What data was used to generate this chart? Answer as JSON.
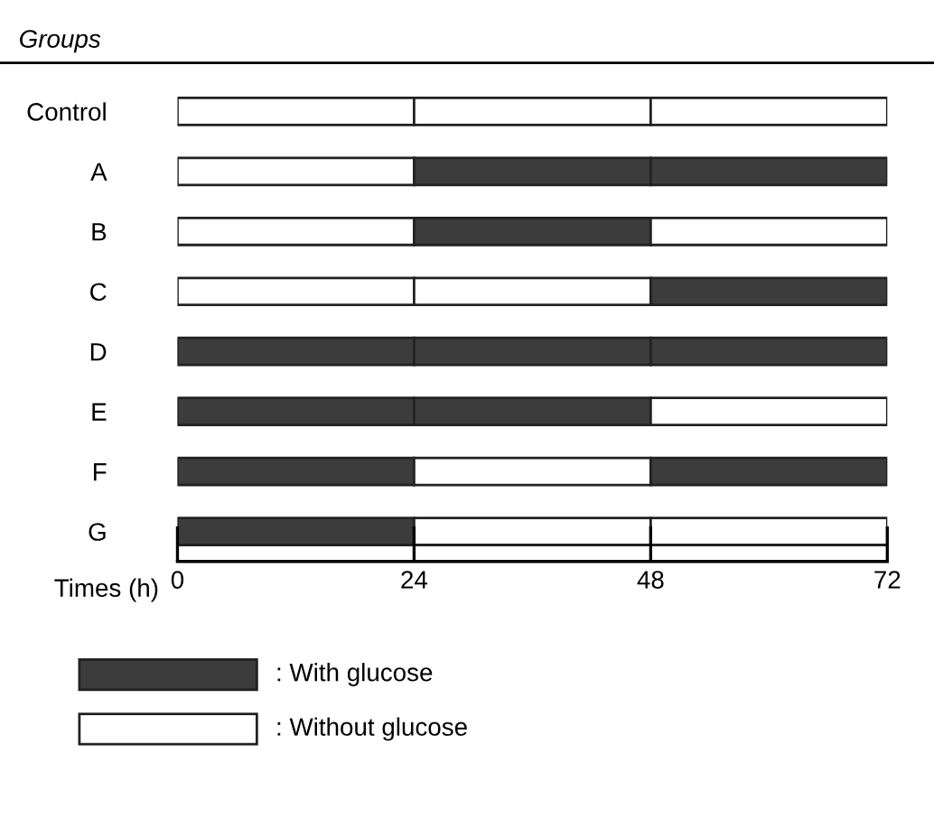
{
  "chart_data": {
    "type": "bar",
    "orientation": "horizontal",
    "stacked": true,
    "title": "Groups",
    "xlabel": "Times (h)",
    "categories": [
      "Control",
      "A",
      "B",
      "C",
      "D",
      "E",
      "F",
      "G"
    ],
    "series": [
      {
        "values": [
          24,
          24,
          24,
          24,
          24,
          24,
          24,
          24
        ],
        "colors": [
          "#ffffff",
          "#ffffff",
          "#ffffff",
          "#ffffff",
          "#3c3c3c",
          "#3c3c3c",
          "#3c3c3c",
          "#3c3c3c"
        ]
      },
      {
        "values": [
          24,
          24,
          24,
          24,
          24,
          24,
          24,
          24
        ],
        "colors": [
          "#ffffff",
          "#3c3c3c",
          "#3c3c3c",
          "#ffffff",
          "#3c3c3c",
          "#3c3c3c",
          "#ffffff",
          "#ffffff"
        ]
      },
      {
        "values": [
          24,
          24,
          24,
          24,
          24,
          24,
          24,
          24
        ],
        "colors": [
          "#ffffff",
          "#3c3c3c",
          "#ffffff",
          "#3c3c3c",
          "#3c3c3c",
          "#ffffff",
          "#3c3c3c",
          "#ffffff"
        ]
      }
    ],
    "annotations": [
      ": With glucose",
      ": Without glucose"
    ],
    "xlim": [
      0,
      72
    ],
    "xticks": [
      0,
      24,
      48,
      72
    ],
    "grid": false
  }
}
